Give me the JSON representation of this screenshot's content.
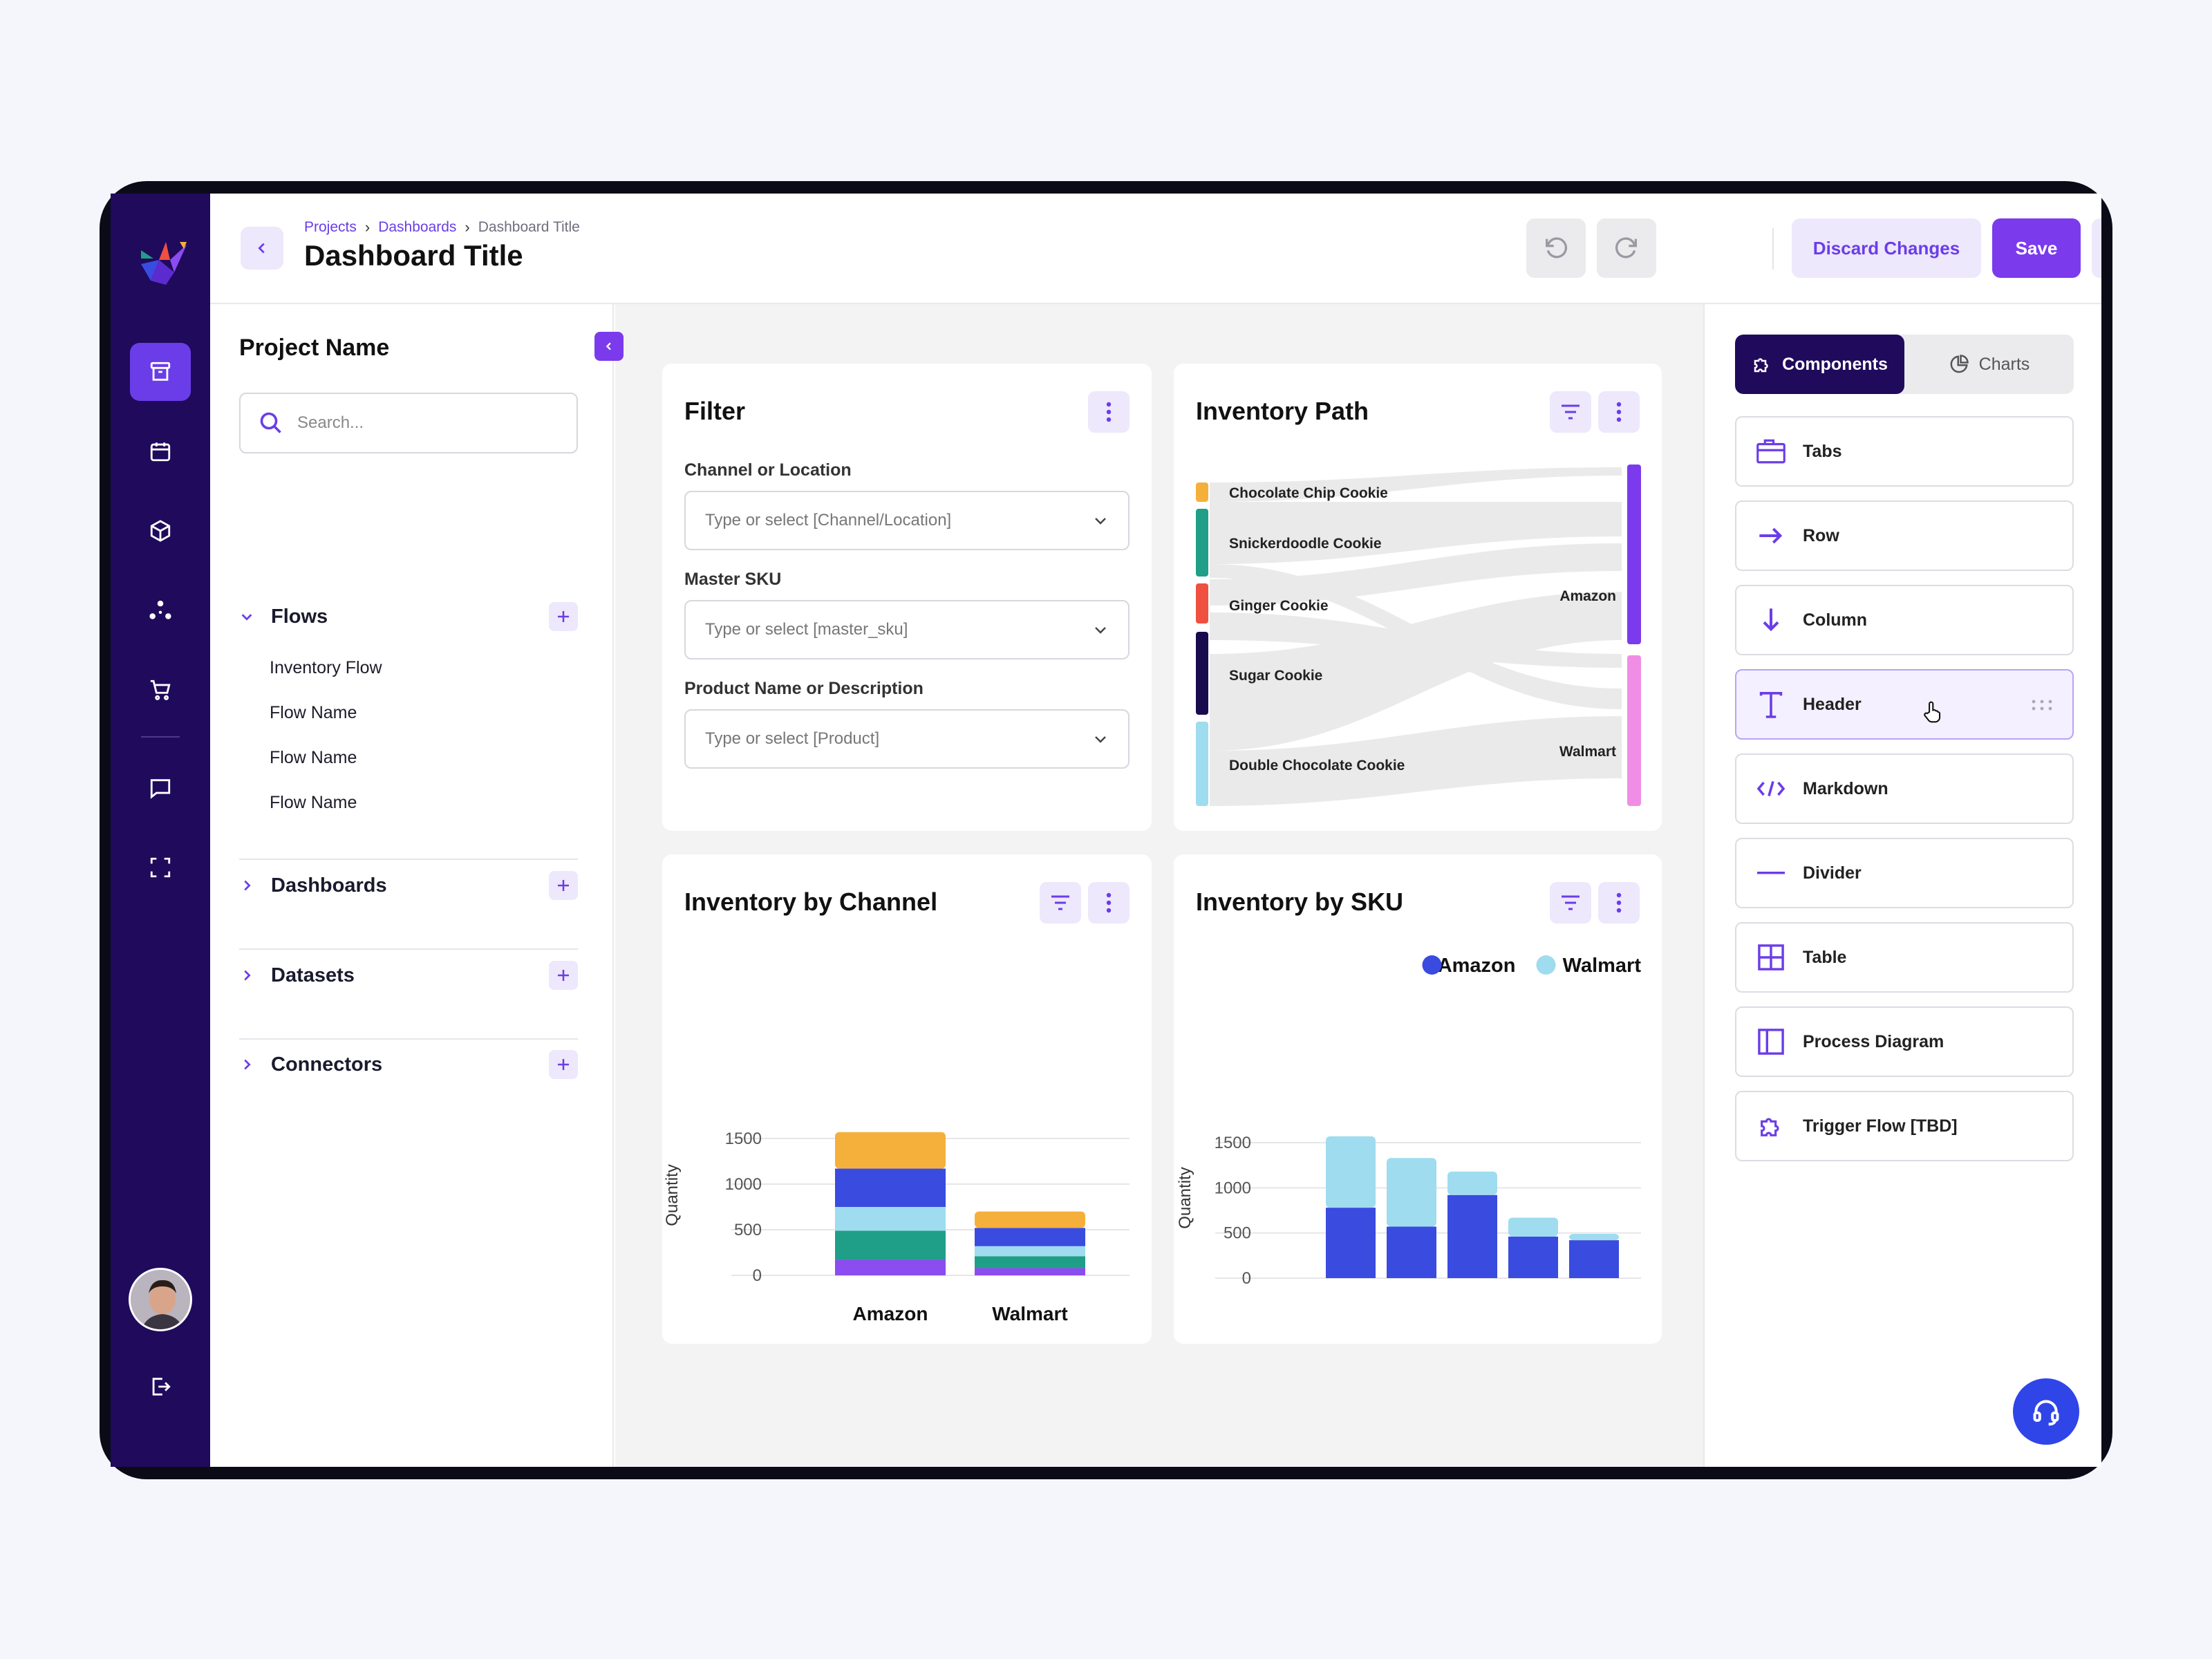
{
  "header": {
    "breadcrumbs": [
      "Projects",
      "Dashboards",
      "Dashboard Title"
    ],
    "title": "Dashboard Title",
    "discard_label": "Discard Changes",
    "save_label": "Save"
  },
  "sidebar_nav": {
    "items": [
      "archive-icon",
      "calendar-icon",
      "box-icon",
      "network-icon",
      "cart-icon",
      "chat-icon",
      "scan-icon",
      "logout-icon"
    ]
  },
  "project_panel": {
    "title": "Project Name",
    "search_placeholder": "Search...",
    "sections": [
      {
        "label": "Flows",
        "expanded": true,
        "items": [
          "Inventory Flow",
          "Flow Name",
          "Flow Name",
          "Flow Name"
        ]
      },
      {
        "label": "Dashboards",
        "expanded": false
      },
      {
        "label": "Datasets",
        "expanded": false
      },
      {
        "label": "Connectors",
        "expanded": false
      }
    ]
  },
  "filter_card": {
    "title": "Filter",
    "fields": [
      {
        "label": "Channel or Location",
        "placeholder": "Type or select [Channel/Location]"
      },
      {
        "label": "Master SKU",
        "placeholder": "Type or select [master_sku]"
      },
      {
        "label": "Product Name or Description",
        "placeholder": "Type or select [Product]"
      }
    ]
  },
  "inventory_path": {
    "title": "Inventory Path",
    "sources": [
      {
        "name": "Chocolate Chip Cookie",
        "color": "#f5b03b"
      },
      {
        "name": "Snickerdoodle Cookie",
        "color": "#1f9e88"
      },
      {
        "name": "Ginger Cookie",
        "color": "#ef5040"
      },
      {
        "name": "Sugar Cookie",
        "color": "#1a0b4f"
      },
      {
        "name": "Double Chocolate Cookie",
        "color": "#9fdcef"
      }
    ],
    "targets": [
      {
        "name": "Amazon",
        "color": "#7c3aed"
      },
      {
        "name": "Walmart",
        "color": "#f08ee6"
      }
    ]
  },
  "chart_data": [
    {
      "type": "bar",
      "title": "Inventory by Channel",
      "stacked": true,
      "categories": [
        "Amazon",
        "Walmart"
      ],
      "ylabel": "Quantity",
      "ylim": [
        0,
        1600
      ],
      "yticks": [
        0,
        500,
        1000,
        1500
      ],
      "series": [
        {
          "color": "#8b4cf0",
          "values": [
            170,
            80
          ]
        },
        {
          "color": "#1f9e88",
          "values": [
            320,
            130
          ]
        },
        {
          "color": "#9fdcef",
          "values": [
            260,
            110
          ]
        },
        {
          "color": "#3a4be0",
          "values": [
            420,
            200
          ]
        },
        {
          "color": "#f5b03b",
          "values": [
            400,
            180
          ]
        }
      ]
    },
    {
      "type": "bar",
      "title": "Inventory by SKU",
      "stacked": true,
      "categories": [
        "",
        "",
        "",
        "",
        ""
      ],
      "ylabel": "Quantity",
      "ylim": [
        0,
        1600
      ],
      "yticks": [
        0,
        500,
        1000,
        1500
      ],
      "legend": "top-right",
      "series": [
        {
          "name": "Amazon",
          "color": "#3a4be0",
          "values": [
            780,
            570,
            920,
            460,
            420
          ]
        },
        {
          "name": "Walmart",
          "color": "#9fdcef",
          "values": [
            790,
            760,
            260,
            210,
            70
          ]
        }
      ]
    }
  ],
  "components_panel": {
    "tabs": [
      "Components",
      "Charts"
    ],
    "items": [
      {
        "label": "Tabs",
        "icon": "tabs-icon"
      },
      {
        "label": "Row",
        "icon": "arrow-right-icon"
      },
      {
        "label": "Column",
        "icon": "arrow-down-icon"
      },
      {
        "label": "Header",
        "icon": "text-icon"
      },
      {
        "label": "Markdown",
        "icon": "code-icon"
      },
      {
        "label": "Divider",
        "icon": "divider-icon"
      },
      {
        "label": "Table",
        "icon": "table-icon"
      },
      {
        "label": "Process Diagram",
        "icon": "layout-icon"
      },
      {
        "label": "Trigger Flow [TBD]",
        "icon": "puzzle-icon"
      }
    ]
  }
}
